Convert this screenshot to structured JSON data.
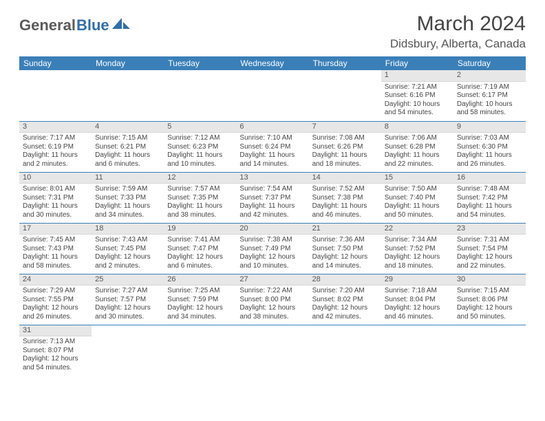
{
  "logo": {
    "part1": "General",
    "part2": "Blue"
  },
  "title": "March 2024",
  "location": "Didsbury, Alberta, Canada",
  "colors": {
    "header_bg": "#3a7fb8",
    "header_text": "#ffffff",
    "daybar_bg": "#e7e7e7",
    "rule": "#3a7fb8",
    "logo_blue": "#2f6fa8",
    "logo_gray": "#5a5a5a"
  },
  "day_headers": [
    "Sunday",
    "Monday",
    "Tuesday",
    "Wednesday",
    "Thursday",
    "Friday",
    "Saturday"
  ],
  "weeks": [
    [
      null,
      null,
      null,
      null,
      null,
      {
        "n": "1",
        "sr": "Sunrise: 7:21 AM",
        "ss": "Sunset: 6:16 PM",
        "dl1": "Daylight: 10 hours",
        "dl2": "and 54 minutes."
      },
      {
        "n": "2",
        "sr": "Sunrise: 7:19 AM",
        "ss": "Sunset: 6:17 PM",
        "dl1": "Daylight: 10 hours",
        "dl2": "and 58 minutes."
      }
    ],
    [
      {
        "n": "3",
        "sr": "Sunrise: 7:17 AM",
        "ss": "Sunset: 6:19 PM",
        "dl1": "Daylight: 11 hours",
        "dl2": "and 2 minutes."
      },
      {
        "n": "4",
        "sr": "Sunrise: 7:15 AM",
        "ss": "Sunset: 6:21 PM",
        "dl1": "Daylight: 11 hours",
        "dl2": "and 6 minutes."
      },
      {
        "n": "5",
        "sr": "Sunrise: 7:12 AM",
        "ss": "Sunset: 6:23 PM",
        "dl1": "Daylight: 11 hours",
        "dl2": "and 10 minutes."
      },
      {
        "n": "6",
        "sr": "Sunrise: 7:10 AM",
        "ss": "Sunset: 6:24 PM",
        "dl1": "Daylight: 11 hours",
        "dl2": "and 14 minutes."
      },
      {
        "n": "7",
        "sr": "Sunrise: 7:08 AM",
        "ss": "Sunset: 6:26 PM",
        "dl1": "Daylight: 11 hours",
        "dl2": "and 18 minutes."
      },
      {
        "n": "8",
        "sr": "Sunrise: 7:06 AM",
        "ss": "Sunset: 6:28 PM",
        "dl1": "Daylight: 11 hours",
        "dl2": "and 22 minutes."
      },
      {
        "n": "9",
        "sr": "Sunrise: 7:03 AM",
        "ss": "Sunset: 6:30 PM",
        "dl1": "Daylight: 11 hours",
        "dl2": "and 26 minutes."
      }
    ],
    [
      {
        "n": "10",
        "sr": "Sunrise: 8:01 AM",
        "ss": "Sunset: 7:31 PM",
        "dl1": "Daylight: 11 hours",
        "dl2": "and 30 minutes."
      },
      {
        "n": "11",
        "sr": "Sunrise: 7:59 AM",
        "ss": "Sunset: 7:33 PM",
        "dl1": "Daylight: 11 hours",
        "dl2": "and 34 minutes."
      },
      {
        "n": "12",
        "sr": "Sunrise: 7:57 AM",
        "ss": "Sunset: 7:35 PM",
        "dl1": "Daylight: 11 hours",
        "dl2": "and 38 minutes."
      },
      {
        "n": "13",
        "sr": "Sunrise: 7:54 AM",
        "ss": "Sunset: 7:37 PM",
        "dl1": "Daylight: 11 hours",
        "dl2": "and 42 minutes."
      },
      {
        "n": "14",
        "sr": "Sunrise: 7:52 AM",
        "ss": "Sunset: 7:38 PM",
        "dl1": "Daylight: 11 hours",
        "dl2": "and 46 minutes."
      },
      {
        "n": "15",
        "sr": "Sunrise: 7:50 AM",
        "ss": "Sunset: 7:40 PM",
        "dl1": "Daylight: 11 hours",
        "dl2": "and 50 minutes."
      },
      {
        "n": "16",
        "sr": "Sunrise: 7:48 AM",
        "ss": "Sunset: 7:42 PM",
        "dl1": "Daylight: 11 hours",
        "dl2": "and 54 minutes."
      }
    ],
    [
      {
        "n": "17",
        "sr": "Sunrise: 7:45 AM",
        "ss": "Sunset: 7:43 PM",
        "dl1": "Daylight: 11 hours",
        "dl2": "and 58 minutes."
      },
      {
        "n": "18",
        "sr": "Sunrise: 7:43 AM",
        "ss": "Sunset: 7:45 PM",
        "dl1": "Daylight: 12 hours",
        "dl2": "and 2 minutes."
      },
      {
        "n": "19",
        "sr": "Sunrise: 7:41 AM",
        "ss": "Sunset: 7:47 PM",
        "dl1": "Daylight: 12 hours",
        "dl2": "and 6 minutes."
      },
      {
        "n": "20",
        "sr": "Sunrise: 7:38 AM",
        "ss": "Sunset: 7:49 PM",
        "dl1": "Daylight: 12 hours",
        "dl2": "and 10 minutes."
      },
      {
        "n": "21",
        "sr": "Sunrise: 7:36 AM",
        "ss": "Sunset: 7:50 PM",
        "dl1": "Daylight: 12 hours",
        "dl2": "and 14 minutes."
      },
      {
        "n": "22",
        "sr": "Sunrise: 7:34 AM",
        "ss": "Sunset: 7:52 PM",
        "dl1": "Daylight: 12 hours",
        "dl2": "and 18 minutes."
      },
      {
        "n": "23",
        "sr": "Sunrise: 7:31 AM",
        "ss": "Sunset: 7:54 PM",
        "dl1": "Daylight: 12 hours",
        "dl2": "and 22 minutes."
      }
    ],
    [
      {
        "n": "24",
        "sr": "Sunrise: 7:29 AM",
        "ss": "Sunset: 7:55 PM",
        "dl1": "Daylight: 12 hours",
        "dl2": "and 26 minutes."
      },
      {
        "n": "25",
        "sr": "Sunrise: 7:27 AM",
        "ss": "Sunset: 7:57 PM",
        "dl1": "Daylight: 12 hours",
        "dl2": "and 30 minutes."
      },
      {
        "n": "26",
        "sr": "Sunrise: 7:25 AM",
        "ss": "Sunset: 7:59 PM",
        "dl1": "Daylight: 12 hours",
        "dl2": "and 34 minutes."
      },
      {
        "n": "27",
        "sr": "Sunrise: 7:22 AM",
        "ss": "Sunset: 8:00 PM",
        "dl1": "Daylight: 12 hours",
        "dl2": "and 38 minutes."
      },
      {
        "n": "28",
        "sr": "Sunrise: 7:20 AM",
        "ss": "Sunset: 8:02 PM",
        "dl1": "Daylight: 12 hours",
        "dl2": "and 42 minutes."
      },
      {
        "n": "29",
        "sr": "Sunrise: 7:18 AM",
        "ss": "Sunset: 8:04 PM",
        "dl1": "Daylight: 12 hours",
        "dl2": "and 46 minutes."
      },
      {
        "n": "30",
        "sr": "Sunrise: 7:15 AM",
        "ss": "Sunset: 8:06 PM",
        "dl1": "Daylight: 12 hours",
        "dl2": "and 50 minutes."
      }
    ],
    [
      {
        "n": "31",
        "sr": "Sunrise: 7:13 AM",
        "ss": "Sunset: 8:07 PM",
        "dl1": "Daylight: 12 hours",
        "dl2": "and 54 minutes."
      },
      null,
      null,
      null,
      null,
      null,
      null
    ]
  ]
}
